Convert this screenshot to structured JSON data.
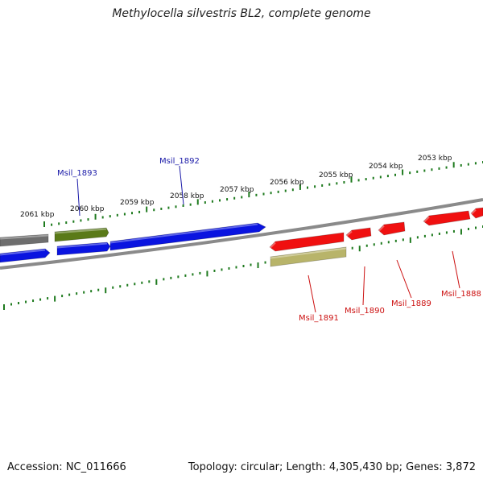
{
  "title": "Methylocella silvestris BL2, complete genome",
  "footer": {
    "accession": "Accession: NC_011666",
    "summary": "Topology: circular; Length: 4,305,430 bp; Genes: 3,872"
  },
  "scale_labels": [
    "2061 kbp",
    "2060 kbp",
    "2059 kbp",
    "2058 kbp",
    "2057 kbp",
    "2056 kbp",
    "2055 kbp",
    "2054 kbp",
    "2053 kbp"
  ],
  "gene_labels": {
    "forward": [
      "Msil_1893",
      "Msil_1892"
    ],
    "reverse": [
      "Msil_1891",
      "Msil_1890",
      "Msil_1889",
      "Msil_1888"
    ]
  },
  "colors": {
    "forward_label": "#1a1aa8",
    "reverse_label": "#cc1111",
    "tick": "#1e7a1e",
    "blue_gene": "#0a14e0",
    "red_gene": "#f01010",
    "olive_gene": "#5a7a18",
    "khaki_gene": "#b8b46a",
    "gray_gene": "#6e6e6e",
    "backbone": "#8a8a8a"
  }
}
